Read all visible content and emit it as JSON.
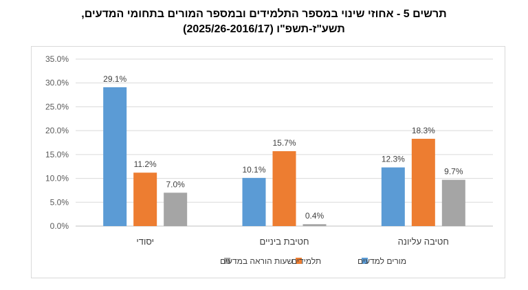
{
  "title_line1": "תרשים 5 - אחוזי שינוי במספר התלמידים ובמספר המורים בתחומי המדעים,",
  "title_line2": "תשע\"ז-תשפ\"ו (2025/26-2016/17)",
  "chart_data": {
    "type": "bar",
    "categories": [
      "יסודי",
      "חטיבת ביניים",
      "חטיבה עליונה"
    ],
    "series": [
      {
        "name": "מורים למדעים",
        "values": [
          29.1,
          10.1,
          12.3
        ],
        "color": "#5b9bd5"
      },
      {
        "name": "תלמידים",
        "values": [
          11.2,
          15.7,
          18.3
        ],
        "color": "#ed7d31"
      },
      {
        "name": "שעות הוראה במדעים",
        "values": [
          7.0,
          0.4,
          9.7
        ],
        "color": "#a5a5a5"
      }
    ],
    "data_labels": [
      [
        "29.1%",
        "10.1%",
        "12.3%"
      ],
      [
        "11.2%",
        "15.7%",
        "18.3%"
      ],
      [
        "7.0%",
        "0.4%",
        "9.7%"
      ]
    ],
    "yticks": [
      "0.0%",
      "5.0%",
      "10.0%",
      "15.0%",
      "20.0%",
      "25.0%",
      "30.0%",
      "35.0%"
    ],
    "ylim": [
      0,
      35
    ],
    "grid": true,
    "legend_position": "bottom"
  }
}
